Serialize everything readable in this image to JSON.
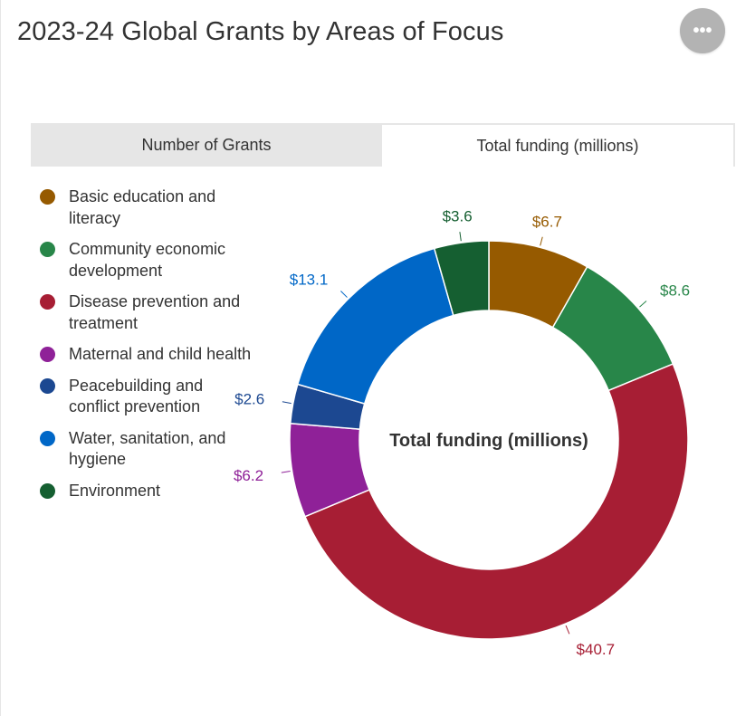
{
  "header": {
    "title": "2023-24 Global Grants by Areas of Focus",
    "menu_label": "•••"
  },
  "tabs": [
    {
      "label": "Number of Grants",
      "active": false
    },
    {
      "label": "Total funding (millions)",
      "active": true
    }
  ],
  "chart_data": {
    "type": "pie",
    "variant": "donut",
    "center_label": "Total funding (millions)",
    "unit_prefix": "$",
    "legend_position": "left",
    "slices": [
      {
        "name": "Basic education and literacy",
        "value": 6.7,
        "label": "$6.7",
        "color": "#965a00"
      },
      {
        "name": "Community economic development",
        "value": 8.6,
        "label": "$8.6",
        "color": "#288649"
      },
      {
        "name": "Disease prevention and treatment",
        "value": 40.7,
        "label": "$40.7",
        "color": "#a71e34"
      },
      {
        "name": "Maternal and child health",
        "value": 6.2,
        "label": "$6.2",
        "color": "#8f2198"
      },
      {
        "name": "Peacebuilding and conflict prevention",
        "value": 2.6,
        "label": "$2.6",
        "color": "#1c4891"
      },
      {
        "name": "Water, sanitation, and hygiene",
        "value": 13.1,
        "label": "$13.1",
        "color": "#0067c7"
      },
      {
        "name": "Environment",
        "value": 3.6,
        "label": "$3.6",
        "color": "#155f31"
      }
    ]
  }
}
